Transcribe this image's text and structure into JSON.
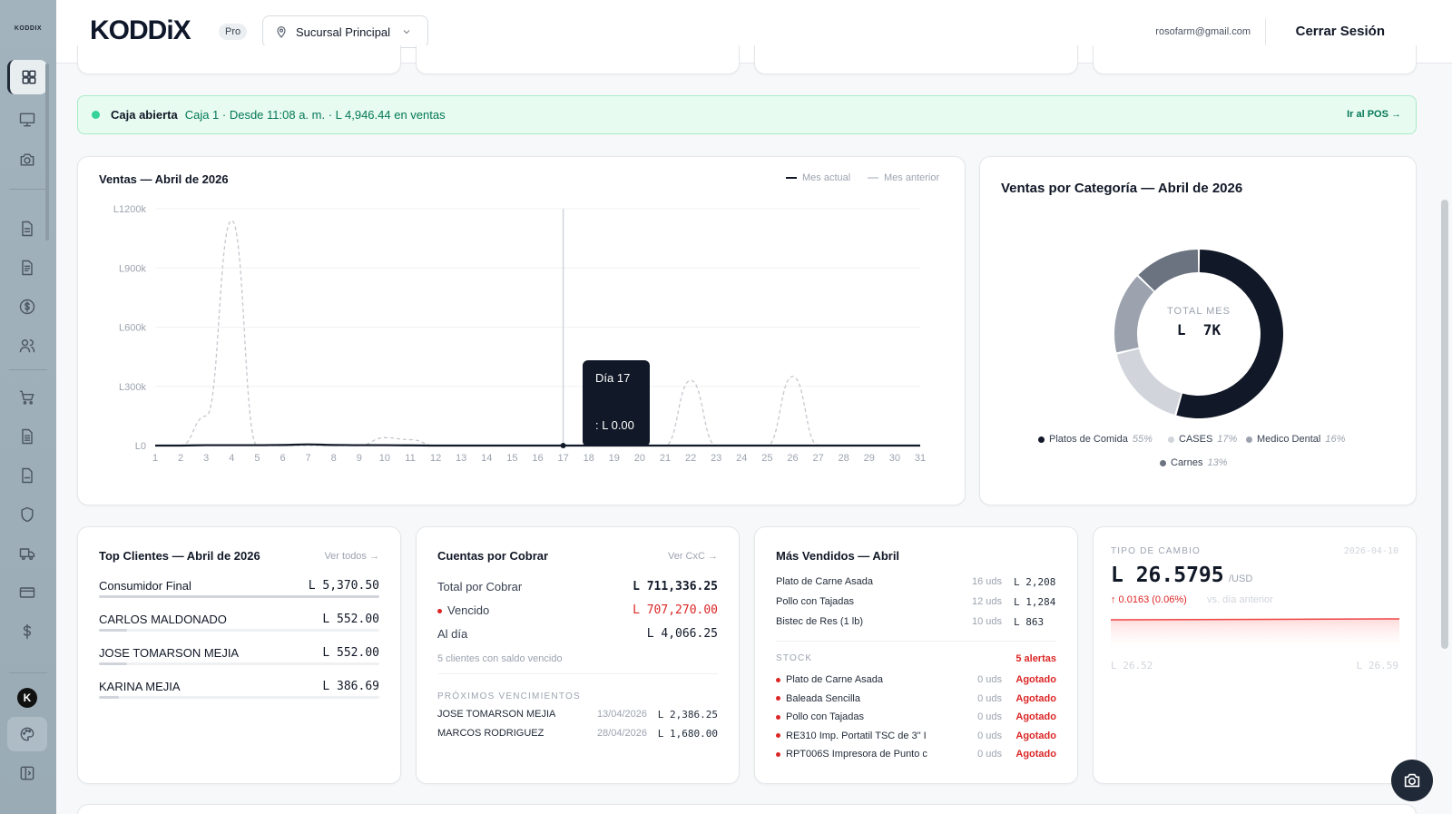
{
  "sidebar": {
    "brand": "KODDIX"
  },
  "topbar": {
    "logo": "KODDiX",
    "plan_badge": "Pro",
    "branch": "Sucursal Principal",
    "email": "rosofarm@gmail.com",
    "logout": "Cerrar Sesión"
  },
  "banner": {
    "status": "Caja abierta",
    "details": "Caja 1 · Desde 11:08 a. m. · L 4,946.44 en ventas",
    "pos_link": "Ir al POS →"
  },
  "sales_chart": {
    "title": "Ventas — Abril de 2026",
    "legend_current": "Mes actual",
    "legend_previous": "Mes anterior",
    "tooltip_title": "Día 17",
    "tooltip_value": ": L 0.00"
  },
  "chart_data": [
    {
      "type": "line",
      "title": "Ventas — Abril de 2026",
      "x": [
        1,
        2,
        3,
        4,
        5,
        6,
        7,
        8,
        9,
        10,
        11,
        12,
        13,
        14,
        15,
        16,
        17,
        18,
        19,
        20,
        21,
        22,
        23,
        24,
        25,
        26,
        27,
        28,
        29,
        30,
        31
      ],
      "y_ticks": [
        "L0",
        "L300k",
        "L600k",
        "L900k",
        "L1200k"
      ],
      "ylim": [
        0,
        1200000
      ],
      "series": [
        {
          "name": "Mes actual",
          "values": [
            0,
            0,
            2000,
            2000,
            2000,
            3000,
            6000,
            3000,
            2000,
            2000,
            1000,
            0,
            0,
            0,
            0,
            0,
            0,
            0,
            0,
            0,
            0,
            0,
            0,
            0,
            0,
            0,
            0,
            0,
            0,
            0,
            0
          ]
        },
        {
          "name": "Mes anterior",
          "values": [
            0,
            0,
            150000,
            1140000,
            0,
            0,
            0,
            0,
            0,
            40000,
            30000,
            0,
            0,
            0,
            0,
            0,
            0,
            0,
            0,
            0,
            0,
            330000,
            0,
            0,
            0,
            350000,
            0,
            0,
            0,
            0,
            0
          ]
        }
      ]
    },
    {
      "type": "pie",
      "title": "Ventas por Categoría — Abril de 2026",
      "center_label": "TOTAL MES",
      "center_value": "L  7K",
      "slices": [
        {
          "name": "Platos de Comida",
          "value": 55,
          "label": "55%",
          "color": "#111827"
        },
        {
          "name": "CASES",
          "value": 17,
          "label": "17%",
          "color": "#d1d5db"
        },
        {
          "name": "Medico Dental",
          "value": 16,
          "label": "16%",
          "color": "#9ca3af"
        },
        {
          "name": "Carnes",
          "value": 13,
          "label": "13%",
          "color": "#6b7280"
        }
      ]
    }
  ],
  "top_clients": {
    "title": "Top Clientes — Abril de 2026",
    "link": "Ver todos →",
    "rows": [
      {
        "name": "Consumidor Final",
        "value": "L 5,370.50",
        "share": 1.0
      },
      {
        "name": "CARLOS MALDONADO",
        "value": "L 552.00",
        "share": 0.1
      },
      {
        "name": "JOSE TOMARSON MEJIA",
        "value": "L 552.00",
        "share": 0.1
      },
      {
        "name": "KARINA MEJIA",
        "value": "L 386.69",
        "share": 0.07
      }
    ]
  },
  "receivables": {
    "title": "Cuentas por Cobrar",
    "link": "Ver CxC →",
    "total_label": "Total por Cobrar",
    "total_value": "L 711,336.25",
    "overdue_label": "Vencido",
    "overdue_value": "L 707,270.00",
    "current_label": "Al día",
    "current_value": "L 4,066.25",
    "note": "5 clientes con saldo vencido",
    "upcoming_title": "PRÓXIMOS VENCIMIENTOS",
    "upcoming": [
      {
        "name": "JOSE TOMARSON MEJIA",
        "date": "13/04/2026",
        "value": "L 2,386.25"
      },
      {
        "name": "MARCOS RODRIGUEZ",
        "date": "28/04/2026",
        "value": "L 1,680.00"
      }
    ]
  },
  "best_sellers": {
    "title": "Más Vendidos — Abril",
    "rows": [
      {
        "name": "Plato de Carne Asada",
        "qty": "16 uds",
        "value": "L 2,208"
      },
      {
        "name": "Pollo con Tajadas",
        "qty": "12 uds",
        "value": "L 1,284"
      },
      {
        "name": "Bistec de Res (1 lb)",
        "qty": "10 uds",
        "value": "L 863"
      }
    ],
    "stock_title": "STOCK",
    "stock_alerts": "5 alertas",
    "stock": [
      {
        "name": "Plato de Carne Asada",
        "qty": "0 uds",
        "status": "Agotado"
      },
      {
        "name": "Baleada Sencilla",
        "qty": "0 uds",
        "status": "Agotado"
      },
      {
        "name": "Pollo con Tajadas",
        "qty": "0 uds",
        "status": "Agotado"
      },
      {
        "name": "RE310 Imp. Portatil TSC de 3\" I",
        "qty": "0 uds",
        "status": "Agotado"
      },
      {
        "name": "RPT006S Impresora de Punto c",
        "qty": "0 uds",
        "status": "Agotado"
      }
    ]
  },
  "exchange": {
    "title": "TIPO DE CAMBIO",
    "date": "2026-04-10",
    "rate": "L 26.5795",
    "unit": "/USD",
    "change": "↑ 0.0163 (0.06%)",
    "change_note": "vs. día anterior",
    "min": "L 26.52",
    "max": "L 26.59"
  }
}
